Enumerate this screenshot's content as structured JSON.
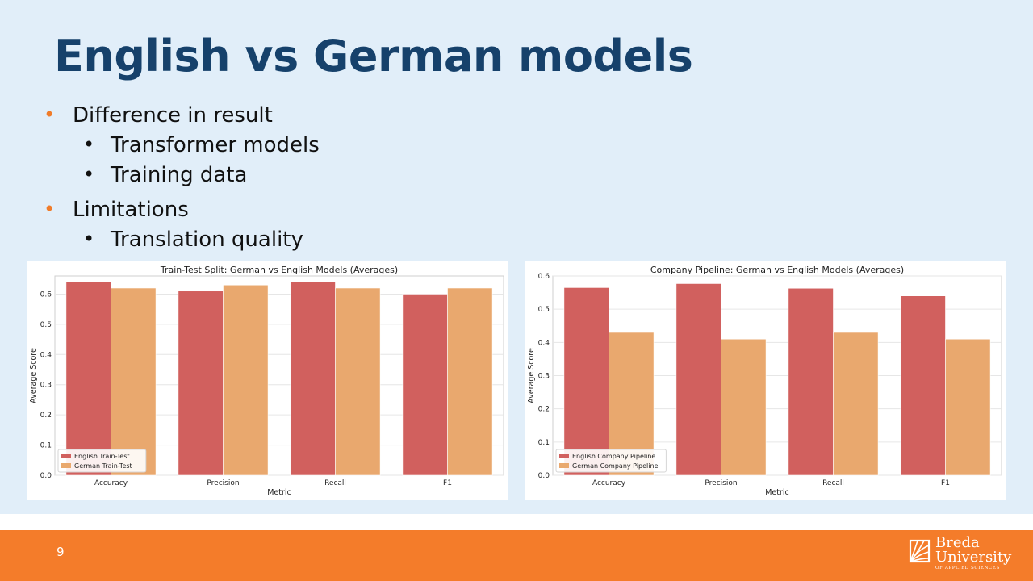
{
  "slide": {
    "title": "English vs German models",
    "bullets": [
      {
        "level": 1,
        "text": "Difference in result"
      },
      {
        "level": 2,
        "text": "Transformer models"
      },
      {
        "level": 2,
        "text": "Training data"
      },
      {
        "level": 1,
        "text": "Limitations"
      },
      {
        "level": 2,
        "text": "Translation quality"
      }
    ],
    "bullet_symbol": "•"
  },
  "footer": {
    "page_number": "9",
    "logo": {
      "line1": "Breda",
      "line2": "University",
      "line3": "OF APPLIED SCIENCES"
    },
    "background_color": "#f47c2a"
  },
  "colors": {
    "title": "#16416b",
    "slide_background": "#e1eef9",
    "bullet_accent": "#f07c2a",
    "english_series": "#d1605e",
    "german_series": "#e9a86e"
  },
  "chart_data": [
    {
      "type": "bar",
      "title": "Train-Test Split: German vs English Models (Averages)",
      "xlabel": "Metric",
      "ylabel": "Average Score",
      "categories": [
        "Accuracy",
        "Precision",
        "Recall",
        "F1"
      ],
      "series": [
        {
          "name": "English Train-Test",
          "values": [
            0.64,
            0.61,
            0.64,
            0.6
          ],
          "color": "#d1605e"
        },
        {
          "name": "German Train-Test",
          "values": [
            0.62,
            0.63,
            0.62,
            0.62
          ],
          "color": "#e9a86e"
        }
      ],
      "ylim": [
        0,
        0.66
      ],
      "yticks": [
        "0.0",
        "0.1",
        "0.2",
        "0.3",
        "0.4",
        "0.5",
        "0.6"
      ],
      "grid": true,
      "legend_position": "lower-left"
    },
    {
      "type": "bar",
      "title": "Company Pipeline: German vs English Models (Averages)",
      "xlabel": "Metric",
      "ylabel": "Average Score",
      "categories": [
        "Accuracy",
        "Precision",
        "Recall",
        "F1"
      ],
      "series": [
        {
          "name": "English Company Pipeline",
          "values": [
            0.565,
            0.577,
            0.563,
            0.54
          ],
          "color": "#d1605e"
        },
        {
          "name": "German Company Pipeline",
          "values": [
            0.43,
            0.41,
            0.43,
            0.41
          ],
          "color": "#e9a86e"
        }
      ],
      "ylim": [
        0,
        0.6
      ],
      "yticks": [
        "0.0",
        "0.1",
        "0.2",
        "0.3",
        "0.4",
        "0.5",
        "0.6"
      ],
      "grid": true,
      "legend_position": "lower-left"
    }
  ]
}
